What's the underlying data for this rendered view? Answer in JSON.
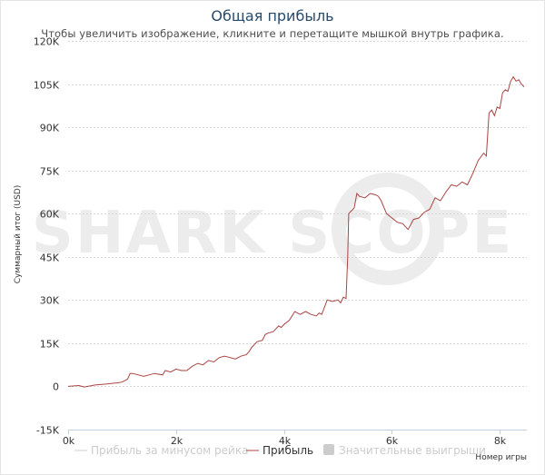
{
  "colors": {
    "profit": "#a94442",
    "rake_line": "#cccccc",
    "big_wins": "#cccccc",
    "title": "#274b6d"
  },
  "chart_data": {
    "type": "line",
    "title": "Общая прибыль",
    "subtitle": "Чтобы увеличить изображение, кликните и перетащите мышкой внутрь графика.",
    "xlabel": "Номер игры",
    "ylabel": "Суммарный итог (USD)",
    "xlim": [
      0,
      8500
    ],
    "ylim": [
      -15000,
      120000
    ],
    "x_ticks": [
      0,
      2000,
      4000,
      6000,
      8000
    ],
    "x_tick_labels": [
      "0k",
      "2k",
      "4k",
      "6k",
      "8k"
    ],
    "y_ticks": [
      -15000,
      0,
      15000,
      30000,
      45000,
      60000,
      75000,
      90000,
      105000,
      120000
    ],
    "y_tick_labels": [
      "-15K",
      "0",
      "15K",
      "30K",
      "45K",
      "60K",
      "75K",
      "90K",
      "105K",
      "120K"
    ],
    "grid": true,
    "watermark": "SHARK SCOPE",
    "legend": [
      {
        "name": "Прибыль за минусом рейка",
        "enabled": false,
        "marker": "line"
      },
      {
        "name": "Прибыль",
        "enabled": true,
        "marker": "line"
      },
      {
        "name": "Значительные выигрыши",
        "enabled": false,
        "marker": "box"
      }
    ],
    "series": [
      {
        "name": "Прибыль",
        "x": [
          0,
          200,
          300,
          500,
          700,
          900,
          1000,
          1100,
          1150,
          1200,
          1400,
          1600,
          1750,
          1800,
          1900,
          2000,
          2100,
          2200,
          2300,
          2400,
          2500,
          2600,
          2700,
          2800,
          2900,
          3000,
          3100,
          3200,
          3300,
          3350,
          3400,
          3500,
          3600,
          3650,
          3700,
          3800,
          3900,
          3950,
          4000,
          4100,
          4200,
          4300,
          4400,
          4500,
          4600,
          4650,
          4700,
          4800,
          4900,
          5000,
          5050,
          5100,
          5150,
          5180,
          5200,
          5250,
          5300,
          5350,
          5400,
          5500,
          5600,
          5700,
          5750,
          5800,
          5900,
          6000,
          6100,
          6200,
          6300,
          6400,
          6500,
          6600,
          6700,
          6800,
          6900,
          7000,
          7100,
          7200,
          7300,
          7400,
          7500,
          7600,
          7700,
          7750,
          7800,
          7850,
          7900,
          7950,
          8000,
          8050,
          8100,
          8150,
          8200,
          8250,
          8300,
          8350,
          8400,
          8450
        ],
        "values": [
          0,
          300,
          -200,
          500,
          800,
          1200,
          1500,
          2500,
          4500,
          4500,
          3500,
          4500,
          4000,
          5500,
          5000,
          6000,
          5500,
          5500,
          7000,
          8000,
          7500,
          9000,
          8500,
          10000,
          10500,
          10000,
          9500,
          10500,
          11000,
          12000,
          13500,
          15500,
          16000,
          18000,
          18500,
          19000,
          21000,
          20500,
          21500,
          23000,
          26000,
          25000,
          26000,
          25000,
          24500,
          25500,
          25000,
          30000,
          29500,
          30000,
          29000,
          31000,
          30500,
          45000,
          60000,
          61000,
          62000,
          67000,
          66000,
          65500,
          67000,
          66500,
          66000,
          64500,
          60000,
          58500,
          57000,
          56500,
          54500,
          58000,
          58500,
          60500,
          61500,
          65500,
          64500,
          67500,
          70000,
          69500,
          71000,
          70000,
          74000,
          78500,
          81000,
          80000,
          95000,
          96000,
          94000,
          97000,
          96500,
          102000,
          103000,
          102500,
          106000,
          107500,
          106000,
          106500,
          105000,
          104000
        ]
      }
    ]
  }
}
